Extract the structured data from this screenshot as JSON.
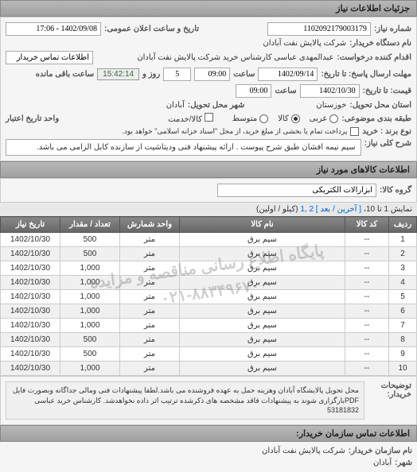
{
  "header": {
    "title": "جزئیات اطلاعات نیاز"
  },
  "form": {
    "request_number_label": "شماره نیاز:",
    "request_number": "1102092179003179",
    "announce_label": "تاریخ و ساعت اعلان عمومی:",
    "announce_value": "1402/09/08 - 17:06",
    "buyer_device_label": "نام دستگاه خریدار:",
    "buyer_device": "شرکت پالایش نفت آبادان",
    "requester_label": "اقدام کننده درخواست:",
    "requester": "عبدالمهدی  عباسی  کارشناس خرید  شرکت پالایش نفت آبادان",
    "buyer_contact_label": "اطلاعات تماس خریدار",
    "deadline_send_label": "مهلت ارسال پاسخ: تا تاریخ:",
    "deadline_date": "1402/09/14",
    "time_label": "ساعت",
    "deadline_time": "09:00",
    "days_label": "روز و",
    "days_value": "5",
    "remaining_label": "ساعت باقی مانده",
    "remaining_time": "15:42:14",
    "price_to_date_label": "قیمت: تا تاریخ:",
    "price_date": "1402/10/30",
    "price_time": "09:00",
    "delivery_province_label": "استان محل تحویل:",
    "delivery_province": "خوزستان",
    "delivery_city_label": "شهر محل تحویل:",
    "delivery_city": "آبادان",
    "budget_label": "طبقه بندی موضوعی:",
    "budget_options": [
      "عربی",
      "کالا",
      "متوسط"
    ],
    "budget_selected": 1,
    "credit_label": "واحد تاریخ اعتبار",
    "credit_checkbox": "کالا/خدمت",
    "payment_label": "نوع برند : خرید",
    "payment_note": "پرداخت تمام یا بخشی از مبلغ خرید، از محل \"اسناد خزانه اسلامی\" خواهد بود.",
    "general_desc_label": "شرح کلی نیاز:",
    "general_desc": "سیم نیمه افشان طبق شرح پیوست . ارائه پیشنهاد فنی ودیتاشیت از سازنده کابل الزامی می باشد."
  },
  "goods_section": {
    "title": "اطلاعات کالاهای مورد نیاز",
    "group_label": "گروه کالا:",
    "group_value": "ابزارآلات الکتریکی"
  },
  "pagination": {
    "text_prefix": "نمایش 1 تا 10،",
    "links": "[ آخرین / بعد ] 2 ,1",
    "text_suffix": "(کیلو /  اولین)"
  },
  "table": {
    "columns": [
      "ردیف",
      "کد کالا",
      "نام کالا",
      "واحد شمارش",
      "تعداد / مقدار",
      "تاریخ نیاز"
    ],
    "rows": [
      [
        "1",
        "--",
        "سیم برق",
        "متر",
        "500",
        "1402/10/30"
      ],
      [
        "2",
        "--",
        "سیم برق",
        "متر",
        "500",
        "1402/10/30"
      ],
      [
        "3",
        "--",
        "سیم برق",
        "متر",
        "1,000",
        "1402/10/30"
      ],
      [
        "4",
        "--",
        "سیم برق",
        "متر",
        "1,000",
        "1402/10/30"
      ],
      [
        "5",
        "--",
        "سیم برق",
        "متر",
        "1,000",
        "1402/10/30"
      ],
      [
        "6",
        "--",
        "سیم برق",
        "متر",
        "1,000",
        "1402/10/30"
      ],
      [
        "7",
        "--",
        "سیم برق",
        "متر",
        "1,000",
        "1402/10/30"
      ],
      [
        "8",
        "--",
        "سیم برق",
        "متر",
        "500",
        "1402/10/30"
      ],
      [
        "9",
        "--",
        "سیم برق",
        "متر",
        "500",
        "1402/10/30"
      ],
      [
        "10",
        "--",
        "سیم برق",
        "متر",
        "1,000",
        "1402/10/30"
      ]
    ],
    "watermark_line1": "پایگاه اطلاع رسانی مناقصه و مزایده",
    "watermark_line2": "۰۲۱-۸۸۳۴۹۶۷۰"
  },
  "notes": {
    "label": "توضیحات خریدار:",
    "text": "محل تحویل پالایشگاه آبادان وهزینه حمل به عهده فروشنده می باشد.لطفا پیشنهادات فنی ومالی جداگانه وبصورت فایل PDFبارگزاری شوند به پیشنهادات فاقد مشخصه های ذکرشده ترتیب اثر داده نخواهدشد. کارشناس خرید عباسی 53181832"
  },
  "footer": {
    "title": "اطلاعات تماس سازمان خریدار:",
    "org_label": "نام سازمان خریدار:",
    "org_value": "شرکت پالایش نفت آبادان",
    "city_label": "شهر:",
    "city_value": "آبادان"
  }
}
